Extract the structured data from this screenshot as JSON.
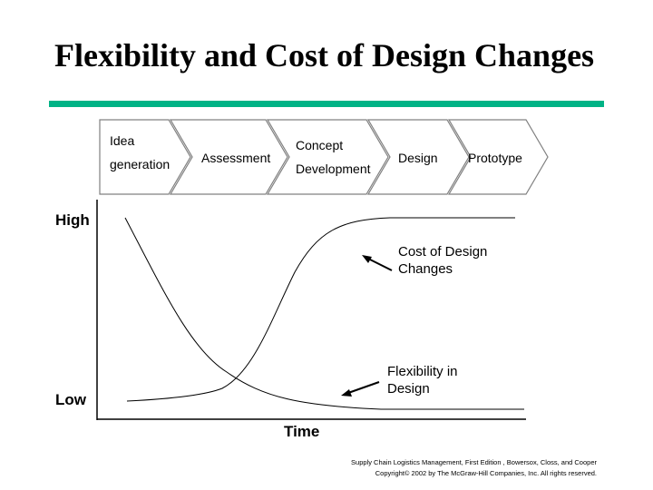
{
  "slide": {
    "title": "Flexibility and Cost of Design Changes",
    "accent_color": "#00b386"
  },
  "stages": [
    {
      "line1": "Idea",
      "line2": "generation"
    },
    {
      "line1": "Assessment",
      "line2": ""
    },
    {
      "line1": "Concept",
      "line2": "Development"
    },
    {
      "line1": "Design",
      "line2": ""
    },
    {
      "line1": "Prototype",
      "line2": ""
    }
  ],
  "axes": {
    "y_high": "High",
    "y_low": "Low",
    "x_label": "Time"
  },
  "curves": {
    "cost": {
      "line1": "Cost of Design",
      "line2": "Changes"
    },
    "flexibility": {
      "line1": "Flexibility in",
      "line2": "Design"
    }
  },
  "footer": {
    "line1": "Supply Chain Logistics Management, First Edition , Bowersox, Closs, and Cooper",
    "line2": "Copyright© 2002 by The McGraw-Hill Companies, Inc. All rights reserved."
  }
}
